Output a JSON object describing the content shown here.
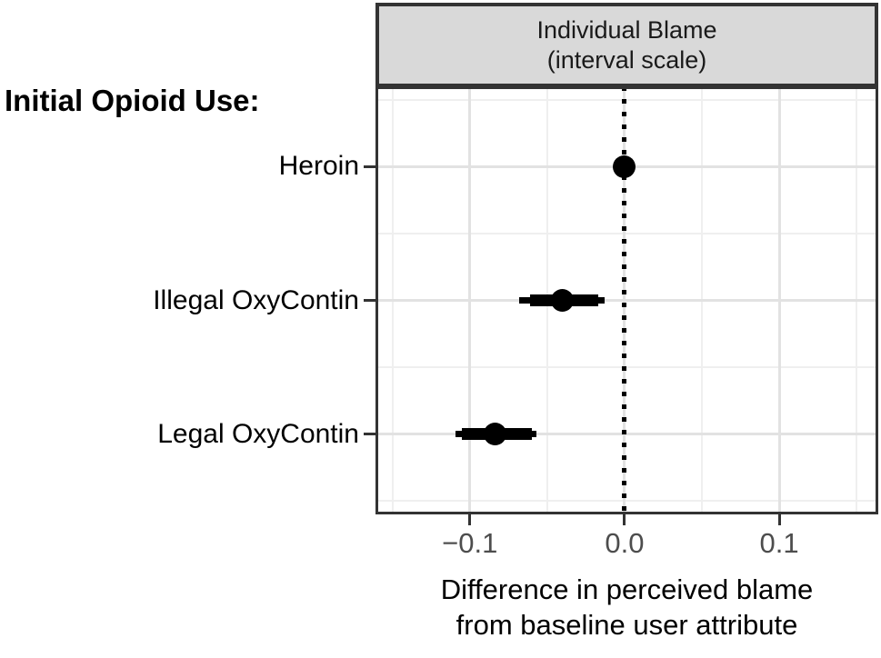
{
  "chart_data": {
    "type": "scatter",
    "style": "coefficient-dot-whisker",
    "title": "Individual Blame (interval scale)",
    "title_lines": [
      "Individual Blame",
      "(interval scale)"
    ],
    "ylabel": "Initial Opioid Use:",
    "xlabel": "Difference in perceived blame from baseline user attribute",
    "xlabel_lines": [
      "Difference in perceived blame",
      "from baseline user attribute"
    ],
    "categories": [
      "Heroin",
      "Illegal OxyContin",
      "Legal OxyContin"
    ],
    "points": [
      {
        "label": "Heroin",
        "estimate": 0.0,
        "ci_inner": [
          0.0,
          0.0
        ],
        "ci_outer": [
          0.0,
          0.0
        ]
      },
      {
        "label": "Illegal OxyContin",
        "estimate": -0.04,
        "ci_inner": [
          -0.061,
          -0.017
        ],
        "ci_outer": [
          -0.068,
          -0.013
        ]
      },
      {
        "label": "Legal OxyContin",
        "estimate": -0.084,
        "ci_inner": [
          -0.105,
          -0.06
        ],
        "ci_outer": [
          -0.109,
          -0.057
        ]
      }
    ],
    "xlim": [
      -0.161,
      0.164
    ],
    "x_ticks": [
      -0.1,
      0.0,
      0.1
    ],
    "x_tick_labels": [
      "−0.1",
      "0.0",
      "0.1"
    ],
    "x_minor_ticks": [
      -0.15,
      -0.05,
      0.05,
      0.15
    ],
    "reference_line_x": 0.0,
    "grid": true,
    "legend": "none"
  },
  "colors": {
    "panel_border": "#333333",
    "strip_fill": "#d9d9d9",
    "grid_major": "#e2e2e2",
    "grid_minor": "#efefef",
    "tick_label": "#4d4d4d",
    "data": "#000000"
  }
}
